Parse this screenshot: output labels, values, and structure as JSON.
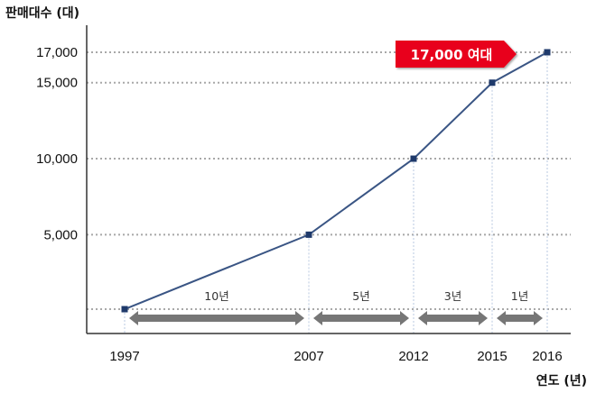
{
  "chart_data": {
    "type": "line",
    "ylabel": "판매대수 (대)",
    "xlabel": "연도 (년)",
    "x": [
      1997,
      2007,
      2012,
      2015,
      2016
    ],
    "x_tick_labels": [
      "1997",
      "2007",
      "2012",
      "2015",
      "2016"
    ],
    "series": [
      {
        "values": [
          100,
          5000,
          10000,
          15000,
          17000
        ]
      }
    ],
    "y_ticks": [
      5000,
      10000,
      15000,
      17000
    ],
    "y_tick_labels": [
      "5,000",
      "10,000",
      "15,000",
      "17,000"
    ],
    "ylim": [
      -1500,
      18000
    ],
    "grid": "horizontal dotted at y ticks",
    "callout": {
      "text": "17,000 여대",
      "color": "#e8001c"
    },
    "spans": [
      {
        "from": 1997,
        "to": 2007,
        "label": "10년"
      },
      {
        "from": 2007,
        "to": 2012,
        "label": "5년"
      },
      {
        "from": 2012,
        "to": 2015,
        "label": "3년"
      },
      {
        "from": 2015,
        "to": 2016,
        "label": "1년"
      }
    ],
    "colors": {
      "line": "#3a5584",
      "marker": "#1f3a6b",
      "grid": "#a8a8a8",
      "arrow": "#767676",
      "axis": "#333333"
    }
  }
}
